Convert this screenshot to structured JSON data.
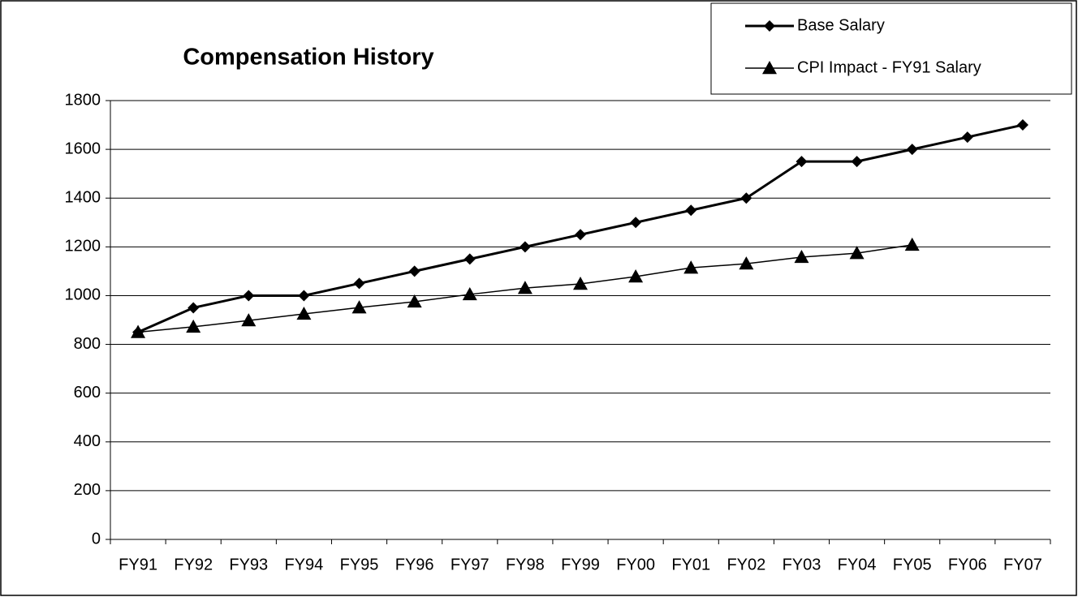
{
  "chart_data": {
    "type": "line",
    "title": "Compensation History",
    "categories": [
      "FY91",
      "FY92",
      "FY93",
      "FY94",
      "FY95",
      "FY96",
      "FY97",
      "FY98",
      "FY99",
      "FY00",
      "FY01",
      "FY02",
      "FY03",
      "FY04",
      "FY05",
      "FY06",
      "FY07"
    ],
    "series": [
      {
        "name": "Base Salary",
        "color": "#000000",
        "marker": "diamond",
        "values": [
          850,
          950,
          1000,
          1000,
          1050,
          1100,
          1150,
          1200,
          1250,
          1300,
          1350,
          1400,
          1550,
          1550,
          1600,
          1650,
          1700
        ]
      },
      {
        "name": "CPI Impact - FY91 Salary",
        "color": "#000000",
        "marker": "triangle",
        "values": [
          850,
          872,
          898,
          925,
          951,
          975,
          1005,
          1031,
          1048,
          1078,
          1114,
          1131,
          1158,
          1174,
          1208,
          null,
          null
        ]
      }
    ],
    "ylim": [
      0,
      1800
    ],
    "yticks": [
      0,
      200,
      400,
      600,
      800,
      1000,
      1200,
      1400,
      1600,
      1800
    ],
    "grid": true,
    "legend": "top-right"
  }
}
